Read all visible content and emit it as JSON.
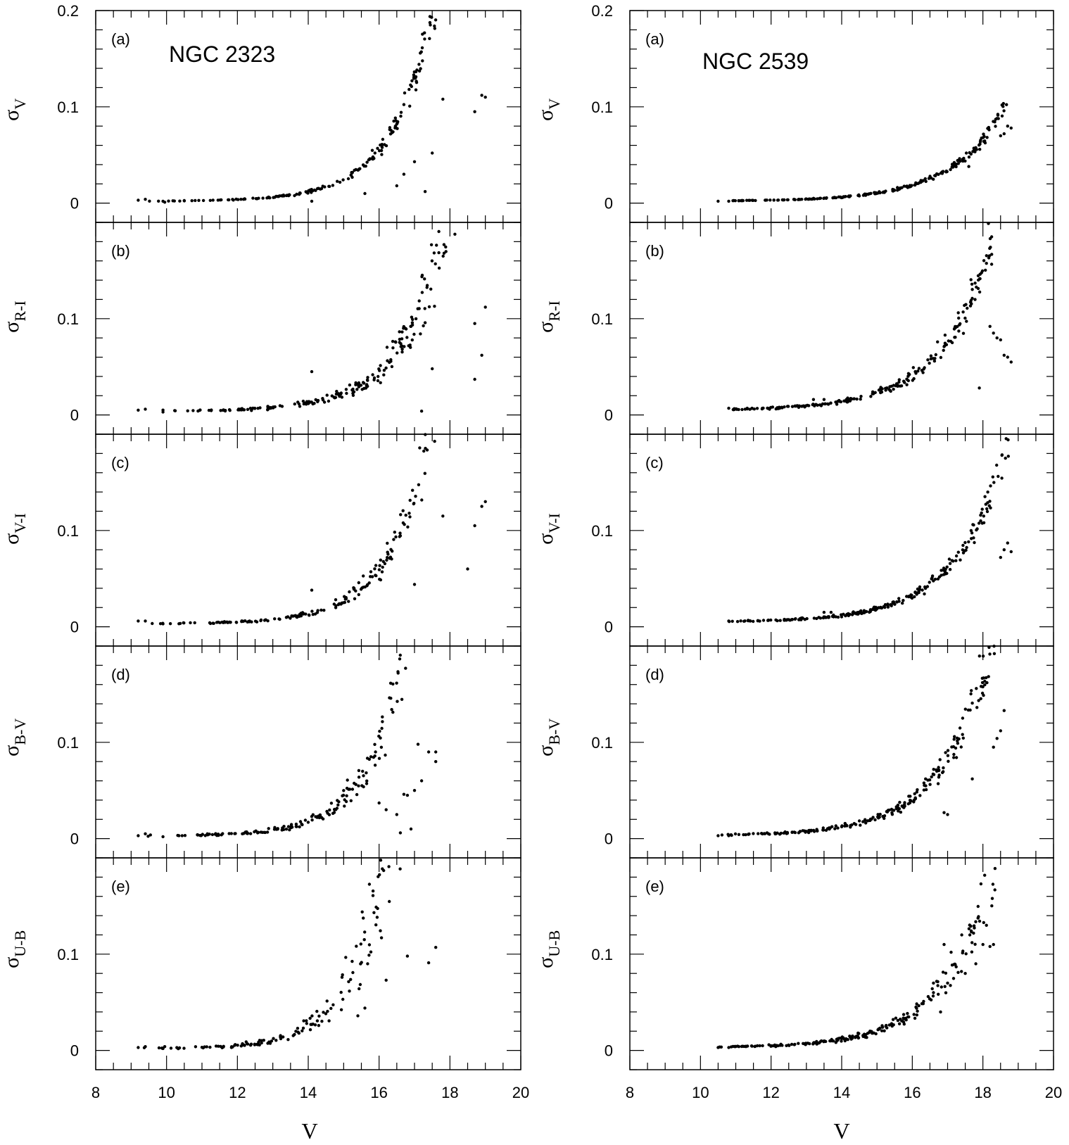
{
  "figure": {
    "xlabel": "V",
    "x_ticks": [
      "8",
      "10",
      "12",
      "14",
      "16",
      "18",
      "20"
    ],
    "y_ticks_top": [
      "0.2",
      "0.1",
      "0"
    ],
    "y_ticks": [
      "0.1",
      "0"
    ],
    "y_symbol": "σ"
  },
  "chart_data": [
    {
      "type": "scatter",
      "title": "NGC 2323",
      "column": "left",
      "xlabel": "V",
      "xlim": [
        8,
        20
      ],
      "x_ticks": [
        8,
        10,
        12,
        14,
        16,
        18,
        20
      ],
      "panels": [
        {
          "label": "(a)",
          "y_sub": "V",
          "ylim": [
            -0.02,
            0.2
          ],
          "y_ticks": [
            0,
            0.1,
            0.2
          ],
          "trend": {
            "base": 0.002,
            "amp": 0.0018,
            "rate": 0.85,
            "x0": 12,
            "min_x": 9.2,
            "max_x": 18.9,
            "n": 230,
            "scatter": 0.18,
            "density": "faint"
          },
          "points": [
            [
              9.2,
              0.003
            ],
            [
              9.4,
              0.004
            ],
            [
              9.9,
              0.002
            ],
            [
              9.95,
              0.001
            ],
            [
              14.1,
              0.002
            ],
            [
              16.7,
              0.03
            ],
            [
              17.0,
              0.043
            ],
            [
              17.8,
              0.108
            ],
            [
              18.9,
              0.112
            ],
            [
              19.0,
              0.11
            ],
            [
              18.7,
              0.095
            ],
            [
              17.5,
              0.052
            ],
            [
              17.3,
              0.012
            ],
            [
              16.5,
              0.018
            ],
            [
              15.6,
              0.01
            ]
          ]
        },
        {
          "label": "(b)",
          "y_sub": "R-I",
          "ylim": [
            -0.02,
            0.2
          ],
          "y_ticks": [
            0,
            0.1
          ],
          "trend": {
            "base": 0.004,
            "amp": 0.0016,
            "rate": 0.82,
            "x0": 12,
            "min_x": 9.2,
            "max_x": 18.8,
            "n": 240,
            "scatter": 0.35,
            "density": "faint"
          },
          "points": [
            [
              9.2,
              0.005
            ],
            [
              9.4,
              0.006
            ],
            [
              9.9,
              0.003
            ],
            [
              14.1,
              0.045
            ],
            [
              19.0,
              0.112
            ],
            [
              18.7,
              0.095
            ],
            [
              18.9,
              0.062
            ],
            [
              18.7,
              0.037
            ],
            [
              17.5,
              0.048
            ],
            [
              17.2,
              0.004
            ]
          ]
        },
        {
          "label": "(c)",
          "y_sub": "V-I",
          "ylim": [
            -0.02,
            0.2
          ],
          "y_ticks": [
            0,
            0.1
          ],
          "trend": {
            "base": 0.003,
            "amp": 0.0019,
            "rate": 0.85,
            "x0": 12,
            "min_x": 9.2,
            "max_x": 18.9,
            "n": 240,
            "scatter": 0.3,
            "density": "faint"
          },
          "points": [
            [
              9.2,
              0.006
            ],
            [
              9.4,
              0.006
            ],
            [
              9.9,
              0.003
            ],
            [
              14.1,
              0.038
            ],
            [
              17.0,
              0.044
            ],
            [
              17.8,
              0.115
            ],
            [
              19.0,
              0.13
            ],
            [
              18.9,
              0.125
            ],
            [
              18.7,
              0.105
            ],
            [
              18.5,
              0.06
            ]
          ]
        },
        {
          "label": "(d)",
          "y_sub": "B-V",
          "ylim": [
            -0.02,
            0.2
          ],
          "y_ticks": [
            0,
            0.1
          ],
          "trend": {
            "base": 0.003,
            "amp": 0.0022,
            "rate": 0.95,
            "x0": 12,
            "min_x": 9.2,
            "max_x": 17.6,
            "n": 200,
            "scatter": 0.4,
            "density": "faint"
          },
          "points": [
            [
              9.2,
              0.003
            ],
            [
              9.4,
              0.005
            ],
            [
              9.9,
              0.002
            ],
            [
              14.1,
              0.023
            ],
            [
              16.0,
              0.037
            ],
            [
              16.2,
              0.03
            ],
            [
              16.5,
              0.025
            ],
            [
              16.6,
              0.006
            ],
            [
              16.9,
              0.01
            ],
            [
              17.1,
              0.098
            ],
            [
              17.4,
              0.09
            ],
            [
              17.6,
              0.09
            ],
            [
              17.6,
              0.08
            ],
            [
              16.7,
              0.046
            ],
            [
              16.8,
              0.045
            ],
            [
              17.0,
              0.05
            ],
            [
              17.2,
              0.06
            ]
          ]
        },
        {
          "label": "(e)",
          "y_sub": "U-B",
          "ylim": [
            -0.02,
            0.2
          ],
          "y_ticks": [
            0,
            0.1
          ],
          "trend": {
            "base": 0.002,
            "amp": 0.0035,
            "rate": 0.95,
            "x0": 12,
            "min_x": 9.2,
            "max_x": 17.6,
            "n": 180,
            "scatter": 0.55,
            "density": "faint"
          },
          "points": [
            [
              9.2,
              0.003
            ],
            [
              9.4,
              0.004
            ],
            [
              9.9,
              0.002
            ],
            [
              9.95,
              0.004
            ],
            [
              13.7,
              0.023
            ],
            [
              14.1,
              0.027
            ],
            [
              16.2,
              0.073
            ],
            [
              16.8,
              0.098
            ],
            [
              17.6,
              0.107
            ],
            [
              17.4,
              0.091
            ],
            [
              15.6,
              0.044
            ],
            [
              15.4,
              0.036
            ]
          ]
        }
      ]
    },
    {
      "type": "scatter",
      "title": "NGC 2539",
      "column": "right",
      "xlabel": "V",
      "xlim": [
        8,
        20
      ],
      "x_ticks": [
        8,
        10,
        12,
        14,
        16,
        18,
        20
      ],
      "panels": [
        {
          "label": "(a)",
          "y_sub": "V",
          "ylim": [
            -0.02,
            0.2
          ],
          "y_ticks": [
            0,
            0.1,
            0.2
          ],
          "trend": {
            "base": 0.002,
            "amp": 0.0011,
            "rate": 0.68,
            "x0": 12,
            "min_x": 10.5,
            "max_x": 18.8,
            "n": 220,
            "scatter": 0.15,
            "density": "even"
          },
          "points": [
            [
              10.5,
              0.002
            ],
            [
              10.8,
              0.002
            ],
            [
              18.8,
              0.078
            ],
            [
              18.7,
              0.08
            ],
            [
              18.6,
              0.072
            ],
            [
              18.5,
              0.07
            ],
            [
              17.6,
              0.038
            ]
          ]
        },
        {
          "label": "(b)",
          "y_sub": "R-I",
          "ylim": [
            -0.02,
            0.2
          ],
          "y_ticks": [
            0,
            0.1
          ],
          "trend": {
            "base": 0.005,
            "amp": 0.0022,
            "rate": 0.7,
            "x0": 12,
            "min_x": 10.8,
            "max_x": 18.3,
            "n": 220,
            "scatter": 0.22,
            "density": "even"
          },
          "points": [
            [
              10.8,
              0.007
            ],
            [
              18.2,
              0.092
            ],
            [
              18.3,
              0.085
            ],
            [
              18.4,
              0.08
            ],
            [
              18.5,
              0.078
            ],
            [
              18.6,
              0.062
            ],
            [
              18.7,
              0.06
            ],
            [
              18.8,
              0.055
            ],
            [
              17.9,
              0.028
            ],
            [
              13.5,
              0.016
            ],
            [
              13.2,
              0.016
            ]
          ]
        },
        {
          "label": "(c)",
          "y_sub": "V-I",
          "ylim": [
            -0.02,
            0.2
          ],
          "y_ticks": [
            0,
            0.1
          ],
          "trend": {
            "base": 0.005,
            "amp": 0.0017,
            "rate": 0.7,
            "x0": 12,
            "min_x": 10.8,
            "max_x": 18.8,
            "n": 230,
            "scatter": 0.18,
            "density": "even"
          },
          "points": [
            [
              10.8,
              0.006
            ],
            [
              18.7,
              0.087
            ],
            [
              18.6,
              0.08
            ],
            [
              18.8,
              0.078
            ],
            [
              18.5,
              0.072
            ],
            [
              13.5,
              0.015
            ],
            [
              13.7,
              0.015
            ]
          ]
        },
        {
          "label": "(d)",
          "y_sub": "B-V",
          "ylim": [
            -0.02,
            0.2
          ],
          "y_ticks": [
            0,
            0.1
          ],
          "trend": {
            "base": 0.003,
            "amp": 0.0022,
            "rate": 0.72,
            "x0": 12,
            "min_x": 10.5,
            "max_x": 18.5,
            "n": 220,
            "scatter": 0.25,
            "density": "even"
          },
          "points": [
            [
              10.5,
              0.003
            ],
            [
              10.8,
              0.003
            ],
            [
              18.6,
              0.133
            ],
            [
              18.5,
              0.112
            ],
            [
              18.4,
              0.104
            ],
            [
              18.3,
              0.095
            ],
            [
              17.7,
              0.062
            ],
            [
              16.9,
              0.027
            ],
            [
              17.0,
              0.025
            ]
          ]
        },
        {
          "label": "(e)",
          "y_sub": "U-B",
          "ylim": [
            -0.02,
            0.2
          ],
          "y_ticks": [
            0,
            0.1
          ],
          "trend": {
            "base": 0.003,
            "amp": 0.002,
            "rate": 0.72,
            "x0": 12,
            "min_x": 10.5,
            "max_x": 18.4,
            "n": 210,
            "scatter": 0.3,
            "density": "even"
          },
          "points": [
            [
              10.5,
              0.003
            ],
            [
              10.8,
              0.003
            ],
            [
              18.1,
              0.13
            ],
            [
              17.4,
              0.12
            ],
            [
              16.9,
              0.11
            ],
            [
              17.1,
              0.102
            ],
            [
              18.0,
              0.11
            ],
            [
              18.3,
              0.11
            ],
            [
              18.2,
              0.108
            ],
            [
              17.0,
              0.07
            ],
            [
              16.6,
              0.06
            ],
            [
              16.6,
              0.07
            ],
            [
              16.8,
              0.04
            ],
            [
              17.5,
              0.08
            ],
            [
              17.8,
              0.09
            ]
          ]
        }
      ]
    }
  ]
}
